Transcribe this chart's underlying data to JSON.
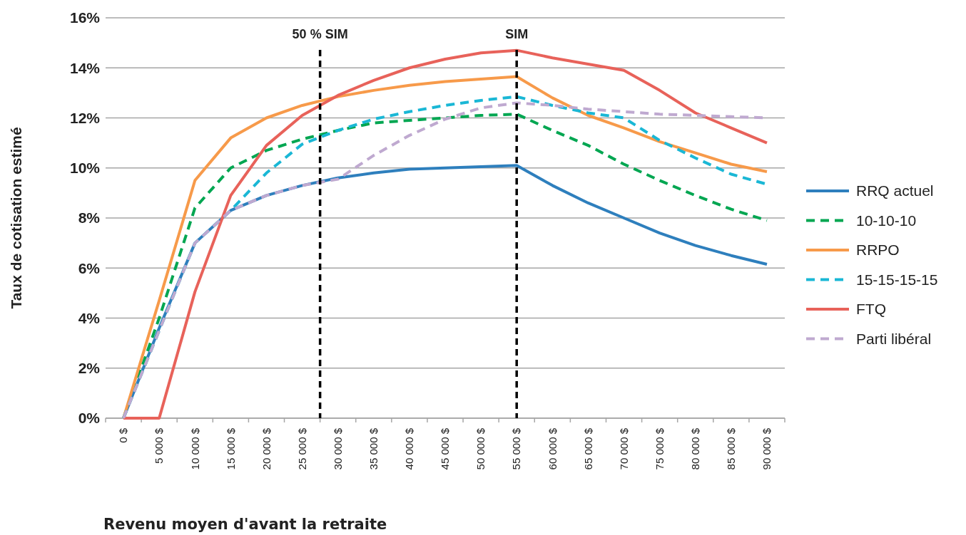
{
  "chart_data": {
    "type": "line",
    "xlabel": "Revenu moyen d'avant la retraite",
    "ylabel": "Taux de cotisation estimé",
    "x": [
      0,
      5000,
      10000,
      15000,
      20000,
      25000,
      30000,
      35000,
      40000,
      45000,
      50000,
      55000,
      60000,
      65000,
      70000,
      75000,
      80000,
      85000,
      90000
    ],
    "xlim": [
      -2500,
      92500
    ],
    "xticks": [
      {
        "value": 0,
        "label": "0 $"
      },
      {
        "value": 5000,
        "label": "5 000 $"
      },
      {
        "value": 10000,
        "label": "10 000 $"
      },
      {
        "value": 15000,
        "label": "15 000 $"
      },
      {
        "value": 20000,
        "label": "20 000 $"
      },
      {
        "value": 25000,
        "label": "25 000 $"
      },
      {
        "value": 30000,
        "label": "30 000 $"
      },
      {
        "value": 35000,
        "label": "35 000 $"
      },
      {
        "value": 40000,
        "label": "40 000 $"
      },
      {
        "value": 45000,
        "label": "45 000 $"
      },
      {
        "value": 50000,
        "label": "50 000 $"
      },
      {
        "value": 55000,
        "label": "55 000 $"
      },
      {
        "value": 60000,
        "label": "60 000 $"
      },
      {
        "value": 65000,
        "label": "65 000 $"
      },
      {
        "value": 70000,
        "label": "70 000 $"
      },
      {
        "value": 75000,
        "label": "75 000 $"
      },
      {
        "value": 80000,
        "label": "80 000 $"
      },
      {
        "value": 85000,
        "label": "85 000 $"
      },
      {
        "value": 90000,
        "label": "90 000 $"
      }
    ],
    "ylim": [
      0,
      16
    ],
    "yticks": [
      {
        "value": 0,
        "label": "0%"
      },
      {
        "value": 2,
        "label": "2%"
      },
      {
        "value": 4,
        "label": "4%"
      },
      {
        "value": 6,
        "label": "6%"
      },
      {
        "value": 8,
        "label": "8%"
      },
      {
        "value": 10,
        "label": "10%"
      },
      {
        "value": 12,
        "label": "12%"
      },
      {
        "value": 14,
        "label": "14%"
      },
      {
        "value": 16,
        "label": "16%"
      }
    ],
    "grid": "y",
    "legend": "right",
    "series": [
      {
        "name": "RRQ actuel",
        "color": "#2e7fbd",
        "line_style": "solid",
        "values": [
          0,
          3.6,
          7.0,
          8.3,
          8.9,
          9.3,
          9.6,
          9.8,
          9.95,
          10.0,
          10.05,
          10.1,
          9.3,
          8.6,
          8.0,
          7.4,
          6.9,
          6.5,
          6.15
        ]
      },
      {
        "name": "10-10-10",
        "color": "#00a651",
        "line_style": "dashed",
        "values": [
          0,
          4.0,
          8.4,
          10.0,
          10.7,
          11.15,
          11.5,
          11.8,
          11.9,
          12.0,
          12.1,
          12.15,
          11.5,
          10.9,
          10.15,
          9.5,
          8.9,
          8.35,
          7.9
        ]
      },
      {
        "name": "RRPO",
        "color": "#f79a4a",
        "line_style": "solid",
        "values": [
          0,
          4.7,
          9.5,
          11.2,
          12.0,
          12.5,
          12.85,
          13.1,
          13.3,
          13.45,
          13.55,
          13.65,
          12.8,
          12.1,
          11.6,
          11.05,
          10.6,
          10.15,
          9.85
        ]
      },
      {
        "name": "15-15-15-15",
        "color": "#1ab7d5",
        "line_style": "dashed",
        "values": [
          0,
          3.5,
          7.0,
          8.3,
          9.8,
          10.95,
          11.5,
          11.95,
          12.25,
          12.5,
          12.7,
          12.85,
          12.5,
          12.2,
          12.0,
          11.1,
          10.4,
          9.75,
          9.35
        ]
      },
      {
        "name": "FTQ",
        "color": "#e8625a",
        "line_style": "solid",
        "values": [
          0,
          0,
          5.05,
          8.9,
          10.9,
          12.1,
          12.9,
          13.5,
          14.0,
          14.35,
          14.6,
          14.7,
          14.4,
          14.15,
          13.9,
          13.1,
          12.2,
          11.6,
          11.0
        ]
      },
      {
        "name": "Parti libéral",
        "color": "#bfa9d0",
        "line_style": "dashed",
        "values": [
          0,
          3.5,
          7.0,
          8.3,
          8.9,
          9.3,
          9.55,
          10.5,
          11.3,
          11.95,
          12.4,
          12.6,
          12.5,
          12.35,
          12.25,
          12.15,
          12.1,
          12.05,
          12.0
        ]
      }
    ],
    "ref_lines": [
      {
        "axis": "x",
        "value": 27500,
        "label": "50 % SIM",
        "color": "#000000",
        "line_style": "dashed"
      },
      {
        "axis": "x",
        "value": 55000,
        "label": "SIM",
        "color": "#000000",
        "line_style": "dashed"
      }
    ]
  }
}
